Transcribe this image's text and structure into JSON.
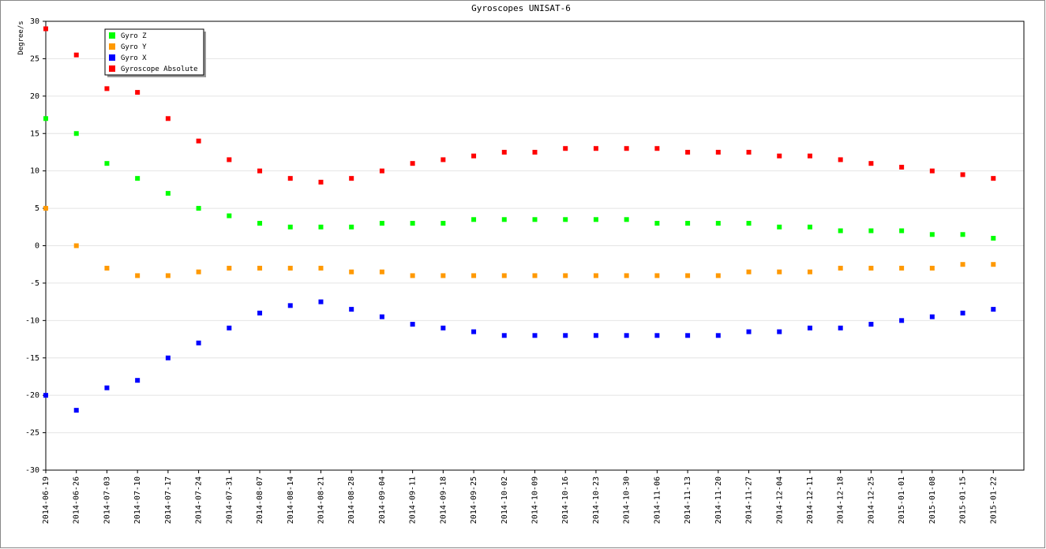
{
  "chart_data": {
    "type": "scatter",
    "title": "Gyroscopes UNISAT-6",
    "y_label": "Degree/s",
    "x": [
      "2014-06-19",
      "2014-06-26",
      "2014-07-03",
      "2014-07-10",
      "2014-07-17",
      "2014-07-24",
      "2014-07-31",
      "2014-08-07",
      "2014-08-14",
      "2014-08-21",
      "2014-08-28",
      "2014-09-04",
      "2014-09-11",
      "2014-09-18",
      "2014-09-25",
      "2014-10-02",
      "2014-10-09",
      "2014-10-16",
      "2014-10-23",
      "2014-10-30",
      "2014-11-06",
      "2014-11-13",
      "2014-11-20",
      "2014-11-27",
      "2014-12-04",
      "2014-12-11",
      "2014-12-18",
      "2014-12-25",
      "2015-01-01",
      "2015-01-08",
      "2015-01-15",
      "2015-01-22"
    ],
    "xticks": [
      "2014-06-19",
      "2014-06-26",
      "2014-07-03",
      "2014-07-10",
      "2014-07-17",
      "2014-07-24",
      "2014-07-31",
      "2014-08-07",
      "2014-08-14",
      "2014-08-21",
      "2014-08-28",
      "2014-09-04",
      "2014-09-11",
      "2014-09-18",
      "2014-09-25",
      "2014-10-02",
      "2014-10-09",
      "2014-10-16",
      "2014-10-23",
      "2014-10-30",
      "2014-11-06",
      "2014-11-13",
      "2014-11-20",
      "2014-11-27",
      "2014-12-04",
      "2014-12-11",
      "2014-12-18",
      "2014-12-25",
      "2015-01-01",
      "2015-01-08",
      "2015-01-15",
      "2015-01-22"
    ],
    "xlim": [
      "2014-06-19",
      "2015-01-29"
    ],
    "ylim": [
      -30,
      30
    ],
    "yticks": [
      -30,
      -25,
      -20,
      -15,
      -10,
      -5,
      0,
      5,
      10,
      15,
      20,
      25,
      30
    ],
    "grid": true,
    "legend": "upper left",
    "series": [
      {
        "name": "Gyro Z",
        "color": "#00ff00",
        "values": [
          17,
          15,
          11,
          9,
          7,
          5,
          4,
          3,
          2.5,
          2.5,
          2.5,
          3,
          3,
          3,
          3.5,
          3.5,
          3.5,
          3.5,
          3.5,
          3.5,
          3,
          3,
          3,
          3,
          2.5,
          2.5,
          2,
          2,
          2,
          1.5,
          1.5,
          1
        ]
      },
      {
        "name": "Gyro Y",
        "color": "#ff9900",
        "values": [
          5,
          0,
          -3,
          -4,
          -4,
          -3.5,
          -3,
          -3,
          -3,
          -3,
          -3.5,
          -3.5,
          -4,
          -4,
          -4,
          -4,
          -4,
          -4,
          -4,
          -4,
          -4,
          -4,
          -4,
          -3.5,
          -3.5,
          -3.5,
          -3,
          -3,
          -3,
          -3,
          -2.5,
          -2.5
        ]
      },
      {
        "name": "Gyro X",
        "color": "#0000ff",
        "values": [
          -20,
          -22,
          -19,
          -18,
          -15,
          -13,
          -11,
          -9,
          -8,
          -7.5,
          -8.5,
          -9.5,
          -10.5,
          -11,
          -11.5,
          -12,
          -12,
          -12,
          -12,
          -12,
          -12,
          -12,
          -12,
          -11.5,
          -11.5,
          -11,
          -11,
          -10.5,
          -10,
          -9.5,
          -9,
          -8.5
        ]
      },
      {
        "name": "Gyroscope Absolute",
        "color": "#ff0000",
        "values": [
          29,
          25.5,
          21,
          20.5,
          17,
          14,
          11.5,
          10,
          9,
          8.5,
          9,
          10,
          11,
          11.5,
          12,
          12.5,
          12.5,
          13,
          13,
          13,
          13,
          12.5,
          12.5,
          12.5,
          12,
          12,
          11.5,
          11,
          10.5,
          10,
          9.5,
          9
        ]
      }
    ]
  }
}
